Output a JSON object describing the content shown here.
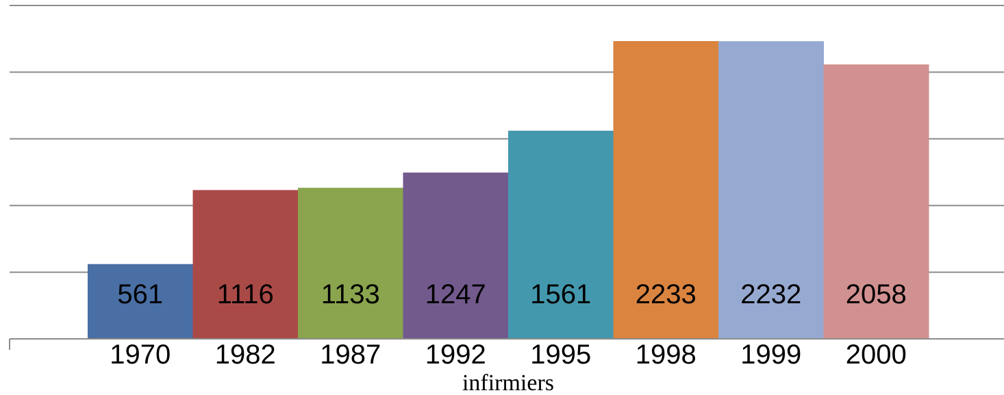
{
  "chart_data": {
    "type": "bar",
    "categories": [
      "1970",
      "1982",
      "1987",
      "1992",
      "1995",
      "1998",
      "1999",
      "2000"
    ],
    "values": [
      561,
      1116,
      1133,
      1247,
      1561,
      2233,
      2232,
      2058
    ],
    "colors": [
      "#4A6FA5",
      "#AA4A47",
      "#8AA54E",
      "#725A8D",
      "#4498AE",
      "#DA8440",
      "#96A9D1",
      "#D19190"
    ],
    "xlabel": "infirmiers",
    "ylabel": "",
    "title": "",
    "ylim": [
      0,
      2500
    ],
    "grid": true,
    "gridline_values": [
      500,
      1000,
      1500,
      2000,
      2500
    ],
    "legend": "none"
  }
}
